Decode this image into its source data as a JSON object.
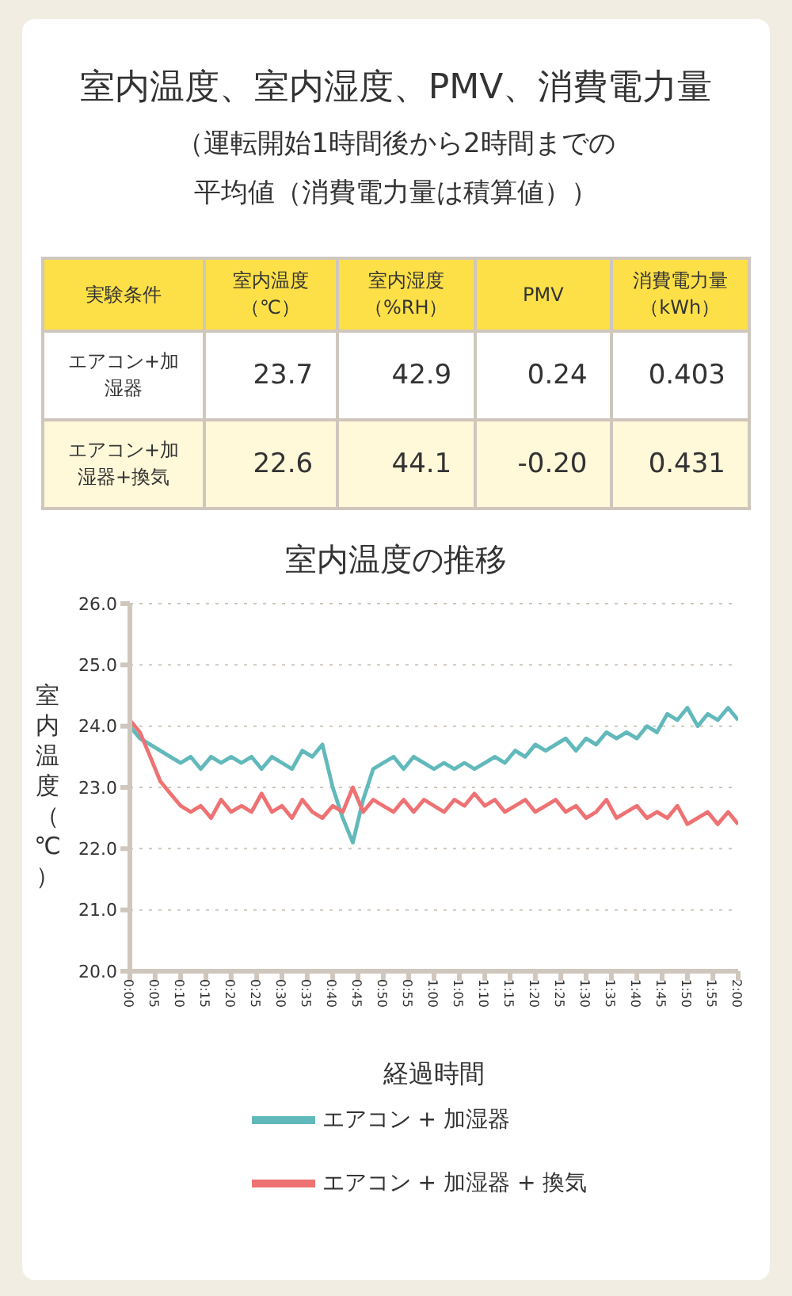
{
  "chart_data": [
    {
      "type": "other",
      "title": "室内温度、室内湿度、PMV、消費電力量",
      "subtitle": "（運転開始1時間後から2時間までの平均値（消費電力量は積算値））",
      "categories": [
        "実験条件",
        "室内温度（℃）",
        "室内湿度（%RH）",
        "PMV",
        "消費電力量（kWh）"
      ],
      "y_categories": [
        "エアコン+加湿器",
        "エアコン+加湿器+換気"
      ],
      "cell_labels": [
        [
          "23.7",
          "42.9",
          "0.24",
          "0.403"
        ],
        [
          "22.6",
          "44.1",
          "-0.20",
          "0.431"
        ]
      ]
    },
    {
      "type": "line",
      "title": "室内温度の推移",
      "xlabel": "経過時間",
      "ylabel": "室内温度（℃）",
      "x": [
        0,
        0.033,
        0.067,
        0.1,
        0.133,
        0.167,
        0.2,
        0.233,
        0.267,
        0.3,
        0.333,
        0.367,
        0.4,
        0.433,
        0.467,
        0.5,
        0.533,
        0.567,
        0.6,
        0.633,
        0.667,
        0.7,
        0.733,
        0.767,
        0.8,
        0.833,
        0.867,
        0.9,
        0.933,
        0.967,
        1,
        1.033,
        1.067,
        1.1,
        1.133,
        1.167,
        1.2,
        1.233,
        1.267,
        1.3,
        1.333,
        1.367,
        1.4,
        1.433,
        1.467,
        1.5,
        1.533,
        1.567,
        1.6,
        1.633,
        1.667,
        1.7,
        1.733,
        1.767,
        1.8,
        1.833,
        1.867,
        1.9,
        1.933,
        1.967,
        2
      ],
      "series": [
        {
          "name": "エアコン + 加湿器",
          "color": "#62b9bb",
          "values": [
            24.0,
            23.8,
            23.7,
            23.6,
            23.5,
            23.4,
            23.5,
            23.3,
            23.5,
            23.4,
            23.5,
            23.4,
            23.5,
            23.3,
            23.5,
            23.4,
            23.3,
            23.6,
            23.5,
            23.7,
            23.0,
            22.5,
            22.1,
            22.8,
            23.3,
            23.4,
            23.5,
            23.3,
            23.5,
            23.4,
            23.3,
            23.4,
            23.3,
            23.4,
            23.3,
            23.4,
            23.5,
            23.4,
            23.6,
            23.5,
            23.7,
            23.6,
            23.7,
            23.8,
            23.6,
            23.8,
            23.7,
            23.9,
            23.8,
            23.9,
            23.8,
            24.0,
            23.9,
            24.2,
            24.1,
            24.3,
            24.0,
            24.2,
            24.1,
            24.3,
            24.1
          ]
        },
        {
          "name": "エアコン + 加湿器 + 換気",
          "color": "#ee7273",
          "values": [
            24.1,
            23.9,
            23.5,
            23.1,
            22.9,
            22.7,
            22.6,
            22.7,
            22.5,
            22.8,
            22.6,
            22.7,
            22.6,
            22.9,
            22.6,
            22.7,
            22.5,
            22.8,
            22.6,
            22.5,
            22.7,
            22.6,
            23.0,
            22.6,
            22.8,
            22.7,
            22.6,
            22.8,
            22.6,
            22.8,
            22.7,
            22.6,
            22.8,
            22.7,
            22.9,
            22.7,
            22.8,
            22.6,
            22.7,
            22.8,
            22.6,
            22.7,
            22.8,
            22.6,
            22.7,
            22.5,
            22.6,
            22.8,
            22.5,
            22.6,
            22.7,
            22.5,
            22.6,
            22.5,
            22.7,
            22.4,
            22.5,
            22.6,
            22.4,
            22.6,
            22.4
          ]
        }
      ],
      "xlim": [
        0,
        2
      ],
      "xticks": [
        {
          "value": 0,
          "label": "0:00"
        },
        {
          "value": 0.083,
          "label": "0:05"
        },
        {
          "value": 0.167,
          "label": "0:10"
        },
        {
          "value": 0.25,
          "label": "0:15"
        },
        {
          "value": 0.333,
          "label": "0:20"
        },
        {
          "value": 0.417,
          "label": "0:25"
        },
        {
          "value": 0.5,
          "label": "0:30"
        },
        {
          "value": 0.583,
          "label": "0:35"
        },
        {
          "value": 0.667,
          "label": "0:40"
        },
        {
          "value": 0.75,
          "label": "0:45"
        },
        {
          "value": 0.833,
          "label": "0:50"
        },
        {
          "value": 0.917,
          "label": "0:55"
        },
        {
          "value": 1,
          "label": "1:00"
        },
        {
          "value": 1.083,
          "label": "1:05"
        },
        {
          "value": 1.167,
          "label": "1:10"
        },
        {
          "value": 1.25,
          "label": "1:15"
        },
        {
          "value": 1.333,
          "label": "1:20"
        },
        {
          "value": 1.417,
          "label": "1:25"
        },
        {
          "value": 1.5,
          "label": "1:30"
        },
        {
          "value": 1.583,
          "label": "1:35"
        },
        {
          "value": 1.667,
          "label": "1:40"
        },
        {
          "value": 1.75,
          "label": "1:45"
        },
        {
          "value": 1.833,
          "label": "1:50"
        },
        {
          "value": 1.917,
          "label": "1:55"
        },
        {
          "value": 2,
          "label": "2:00"
        }
      ],
      "ylim": [
        20,
        26
      ],
      "yticks": [
        {
          "value": 20,
          "label": "20.0"
        },
        {
          "value": 21,
          "label": "21.0"
        },
        {
          "value": 22,
          "label": "22.0"
        },
        {
          "value": 23,
          "label": "23.0"
        },
        {
          "value": 24,
          "label": "24.0"
        },
        {
          "value": 25,
          "label": "25.0"
        },
        {
          "value": 26,
          "label": "26.0"
        }
      ],
      "grid": "y",
      "legend": "bottom",
      "marker": "none",
      "line_style": "solid"
    }
  ]
}
